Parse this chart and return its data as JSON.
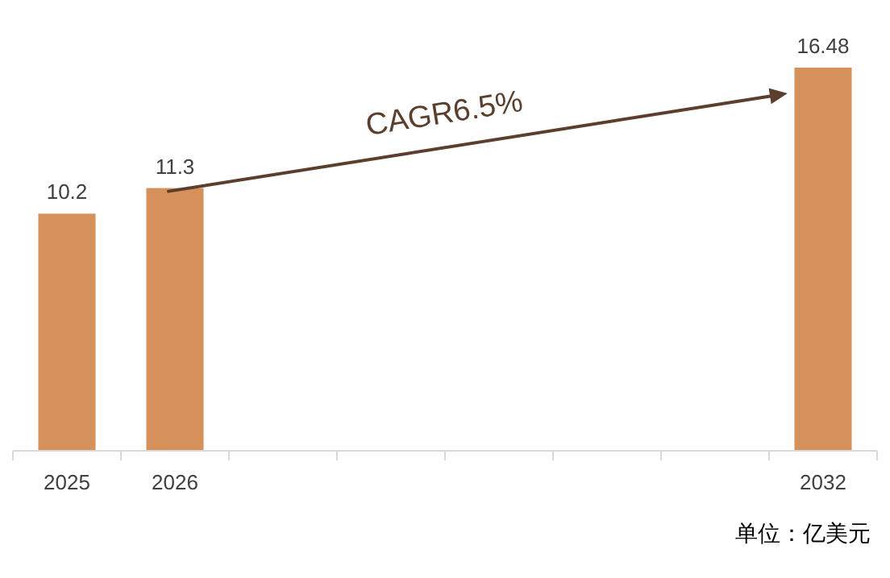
{
  "chart_data": {
    "type": "bar",
    "categories": [
      "2025",
      "2026",
      null,
      null,
      null,
      null,
      null,
      "2032"
    ],
    "values": [
      10.2,
      11.3,
      null,
      null,
      null,
      null,
      null,
      16.48
    ],
    "color": "#d6915a",
    "data_labels": true,
    "annotations": [
      "CAGR6.5%",
      "单位：亿美元"
    ]
  }
}
